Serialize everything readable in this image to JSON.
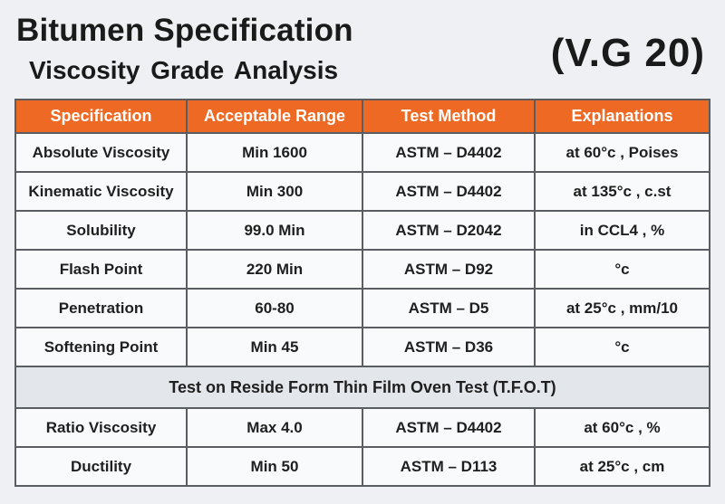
{
  "header": {
    "title": "Bitumen Specification",
    "subtitle": "Viscosity  Grade Analysis",
    "grade": "(V.G 20)"
  },
  "table": {
    "columns": [
      "Specification",
      "Acceptable Range",
      "Test Method",
      "Explanations"
    ],
    "rows": [
      [
        "Absolute Viscosity",
        "Min 1600",
        "ASTM – D4402",
        "at 60°c , Poises"
      ],
      [
        "Kinematic Viscosity",
        "Min 300",
        "ASTM – D4402",
        "at 135°c , c.st"
      ],
      [
        "Solubility",
        "99.0 Min",
        "ASTM – D2042",
        "in CCL4 , %"
      ],
      [
        "Flash Point",
        "220 Min",
        "ASTM – D92",
        "°c"
      ],
      [
        "Penetration",
        "60-80",
        "ASTM – D5",
        "at 25°c , mm/10"
      ],
      [
        "Softening Point",
        "Min 45",
        "ASTM – D36",
        "°c"
      ]
    ],
    "section_title": "Test on Reside Form Thin Film Oven Test (T.F.O.T)",
    "section_rows": [
      [
        "Ratio Viscosity",
        "Max 4.0",
        "ASTM – D4402",
        "at 60°c , %"
      ],
      [
        "Ductility",
        "Min 50",
        "ASTM – D113",
        "at 25°c , cm"
      ]
    ]
  },
  "colors": {
    "header_bg": "#ee6a24",
    "header_text": "#ffffff",
    "border": "#5a5d62",
    "section_bg": "#e3e6ea"
  }
}
